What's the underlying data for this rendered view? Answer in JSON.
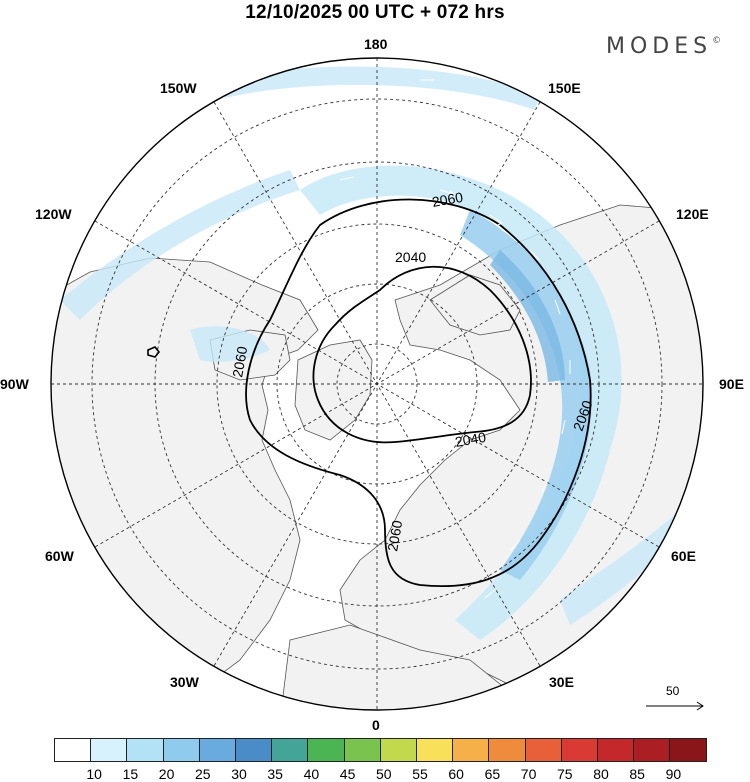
{
  "title": "12/10/2025  00 UTC  + 072 hrs",
  "brand": "MODES",
  "brand_mark": "©",
  "longitude_labels": {
    "top": "180",
    "top_left": "150W",
    "top_right": "150E",
    "upper_left": "120W",
    "upper_right": "120E",
    "left": "90W",
    "right": "90E",
    "lower_left": "60W",
    "lower_right": "60E",
    "bottom_left": "30W",
    "bottom_right": "30E",
    "bottom": "0"
  },
  "contour_labels": [
    "2060",
    "2040",
    "2060",
    "2040",
    "2060",
    "2060"
  ],
  "reference_vector": {
    "value": "50",
    "icon": "arrow-right-icon"
  },
  "colorbar": {
    "colors": [
      "#ffffff",
      "#d8f2fd",
      "#b3e2f7",
      "#8ecbec",
      "#6aabdf",
      "#4a8cc8",
      "#44a497",
      "#4cb553",
      "#7ac34f",
      "#c2d94e",
      "#f9e05a",
      "#f6b04a",
      "#ef8b3c",
      "#e8603a",
      "#d93a33",
      "#c4282b",
      "#aa1e24",
      "#8b1619"
    ],
    "ticks": [
      "10",
      "15",
      "20",
      "25",
      "30",
      "35",
      "40",
      "45",
      "50",
      "55",
      "60",
      "65",
      "70",
      "75",
      "80",
      "85",
      "90"
    ]
  },
  "style": {
    "land": "#f2f2f2",
    "ocean": "#ffffff",
    "jet_light": "#c7e9f8",
    "jet_mid": "#9dd0ef",
    "jet_strong": "#79b8e3"
  }
}
